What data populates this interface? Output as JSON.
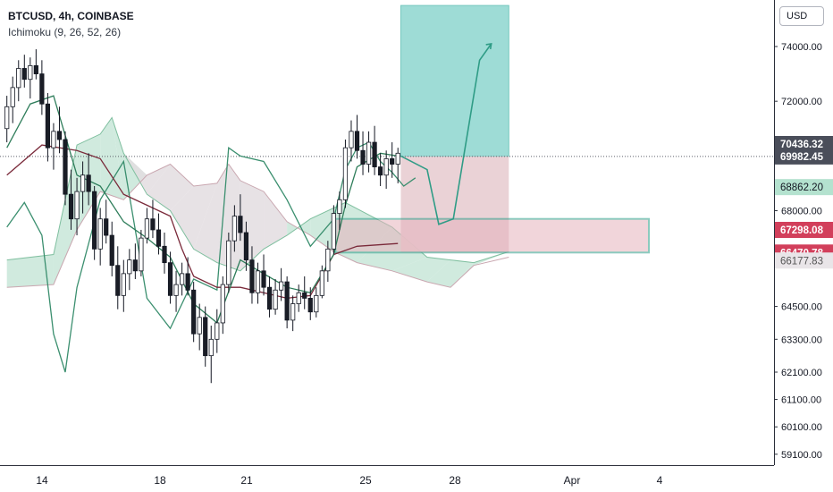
{
  "header": {
    "symbol_line": "BTCUSD, 4h, COINBASE",
    "indicator_line": "Ichimoku (9, 26, 52, 26)"
  },
  "currency_button": "USD",
  "colors": {
    "candle_up": "#26a69a",
    "candle_down": "#ef5350",
    "candle_border": "#131722",
    "conversion_line": "#2e7d5a",
    "base_line": "#7a2a3a",
    "lagging_span": "#3b8f6f",
    "cloud_bull": "#c8e6d8",
    "cloud_bear": "#e3dde0",
    "target_zone": "#8ed6cf",
    "stop_zone": "#e8cdd2",
    "entry_zone_fill": "#e6b3bd",
    "entry_zone_border": "#2e9f8a"
  },
  "chart_data": {
    "type": "candlestick",
    "x_axis": {
      "tick_labels": [
        "14",
        "18",
        "21",
        "25",
        "28",
        "Apr",
        "4"
      ]
    },
    "y_axis": {
      "range": [
        58700,
        75700
      ],
      "tick_labels": [
        "74000.00",
        "72000.00",
        "68000.00",
        "64500.00",
        "63300.00",
        "62100.00",
        "61100.00",
        "60100.00",
        "59100.00"
      ]
    },
    "price_labels": [
      {
        "text": "70436.32",
        "value": 70436.32,
        "style": "dark"
      },
      {
        "text": "69982.45",
        "value": 69982.45,
        "style": "dark"
      },
      {
        "text": "68862.20",
        "value": 68862.2,
        "style": "green"
      },
      {
        "text": "67298.08",
        "value": 67298.08,
        "style": "red"
      },
      {
        "text": "66470.78",
        "value": 66470.78,
        "style": "red"
      },
      {
        "text": "66177.83",
        "value": 66177.83,
        "style": "plain"
      }
    ],
    "dotted_price_line": 69982.45,
    "candles": [
      [
        71000,
        72200,
        70500,
        71800
      ],
      [
        71800,
        72900,
        71200,
        72500
      ],
      [
        72500,
        73500,
        72000,
        73200
      ],
      [
        73200,
        73700,
        72500,
        72800
      ],
      [
        72800,
        73600,
        72100,
        73300
      ],
      [
        73300,
        73900,
        72800,
        73000
      ],
      [
        73000,
        73500,
        71500,
        71900
      ],
      [
        71900,
        72300,
        69800,
        70300
      ],
      [
        70300,
        71200,
        69500,
        70900
      ],
      [
        70900,
        71800,
        70100,
        70600
      ],
      [
        70600,
        70900,
        68200,
        68600
      ],
      [
        68600,
        69500,
        67300,
        67700
      ],
      [
        67700,
        69200,
        67100,
        68700
      ],
      [
        68700,
        69800,
        67900,
        69300
      ],
      [
        69300,
        70100,
        68200,
        68700
      ],
      [
        68700,
        68900,
        66200,
        66600
      ],
      [
        66600,
        68100,
        66000,
        67700
      ],
      [
        67700,
        68400,
        66800,
        67100
      ],
      [
        67100,
        67600,
        65600,
        66000
      ],
      [
        66000,
        66700,
        64400,
        64900
      ],
      [
        64900,
        66200,
        64300,
        65700
      ],
      [
        65700,
        66600,
        65100,
        66200
      ],
      [
        66200,
        66800,
        65500,
        65800
      ],
      [
        65800,
        67300,
        65600,
        67000
      ],
      [
        67000,
        68100,
        66800,
        67700
      ],
      [
        67700,
        68400,
        67000,
        67300
      ],
      [
        67300,
        67900,
        66400,
        66700
      ],
      [
        66700,
        67200,
        65700,
        66100
      ],
      [
        66100,
        66500,
        64600,
        64900
      ],
      [
        64900,
        65800,
        64300,
        65300
      ],
      [
        65300,
        66100,
        64900,
        65700
      ],
      [
        65700,
        66300,
        64900,
        65100
      ],
      [
        65100,
        65400,
        63200,
        63500
      ],
      [
        63500,
        64600,
        62900,
        64100
      ],
      [
        64100,
        64500,
        62300,
        62700
      ],
      [
        62700,
        63800,
        61700,
        63300
      ],
      [
        63300,
        64400,
        62800,
        63900
      ],
      [
        63900,
        65600,
        63500,
        65300
      ],
      [
        65300,
        67200,
        65000,
        66900
      ],
      [
        66900,
        68200,
        66500,
        67800
      ],
      [
        67800,
        68600,
        66900,
        67200
      ],
      [
        67200,
        67600,
        65800,
        66200
      ],
      [
        66200,
        66700,
        64600,
        65000
      ],
      [
        65000,
        66100,
        64600,
        65800
      ],
      [
        65800,
        66400,
        64900,
        65200
      ],
      [
        65200,
        65600,
        64100,
        64400
      ],
      [
        64400,
        65500,
        64200,
        65100
      ],
      [
        65100,
        65900,
        64700,
        65400
      ],
      [
        65400,
        65600,
        63700,
        64000
      ],
      [
        64000,
        64900,
        63600,
        64600
      ],
      [
        64600,
        65300,
        64300,
        65000
      ],
      [
        65000,
        65600,
        64400,
        64800
      ],
      [
        64800,
        65200,
        64000,
        64300
      ],
      [
        64300,
        65200,
        64100,
        64900
      ],
      [
        64900,
        66000,
        64800,
        65800
      ],
      [
        65800,
        66900,
        65400,
        66600
      ],
      [
        66600,
        68200,
        66400,
        67900
      ],
      [
        67900,
        68700,
        67300,
        68400
      ],
      [
        68400,
        70600,
        68100,
        70300
      ],
      [
        70300,
        71300,
        69800,
        70900
      ],
      [
        70900,
        71500,
        69900,
        70200
      ],
      [
        70200,
        70900,
        69300,
        69700
      ],
      [
        69700,
        70900,
        69400,
        70500
      ],
      [
        70500,
        71100,
        69300,
        69600
      ],
      [
        69600,
        70100,
        68900,
        69300
      ],
      [
        69300,
        70200,
        68800,
        69900
      ],
      [
        69900,
        70500,
        69200,
        69700
      ],
      [
        69700,
        70300,
        69000,
        70100
      ]
    ],
    "conversion_line": [
      [
        0,
        70300
      ],
      [
        4,
        71900
      ],
      [
        8,
        72200
      ],
      [
        12,
        69300
      ],
      [
        16,
        68900
      ],
      [
        20,
        67600
      ],
      [
        24,
        67000
      ],
      [
        28,
        66300
      ],
      [
        32,
        64600
      ],
      [
        36,
        63900
      ],
      [
        40,
        66200
      ],
      [
        44,
        65700
      ],
      [
        48,
        65200
      ],
      [
        52,
        65000
      ],
      [
        56,
        66400
      ],
      [
        58,
        68200
      ],
      [
        60,
        69600
      ],
      [
        64,
        70100
      ],
      [
        67,
        70000
      ]
    ],
    "base_line": [
      [
        0,
        69300
      ],
      [
        6,
        70400
      ],
      [
        12,
        70200
      ],
      [
        16,
        69900
      ],
      [
        20,
        68600
      ],
      [
        24,
        68200
      ],
      [
        28,
        67800
      ],
      [
        30,
        66600
      ],
      [
        32,
        65600
      ],
      [
        36,
        65200
      ],
      [
        40,
        65200
      ],
      [
        44,
        65000
      ],
      [
        48,
        64800
      ],
      [
        52,
        64900
      ],
      [
        56,
        66400
      ],
      [
        60,
        66700
      ],
      [
        67,
        66800
      ]
    ],
    "lagging_span": [
      [
        0,
        67400
      ],
      [
        3,
        68300
      ],
      [
        6,
        67100
      ],
      [
        8,
        63500
      ],
      [
        10,
        62100
      ],
      [
        12,
        65200
      ],
      [
        16,
        68400
      ],
      [
        20,
        69800
      ],
      [
        24,
        64800
      ],
      [
        28,
        63700
      ],
      [
        32,
        65500
      ],
      [
        36,
        65100
      ],
      [
        38,
        70300
      ],
      [
        40,
        70000
      ],
      [
        44,
        69800
      ],
      [
        48,
        68400
      ],
      [
        52,
        66700
      ],
      [
        56,
        67700
      ],
      [
        58,
        69500
      ],
      [
        60,
        70300
      ],
      [
        62,
        70500
      ],
      [
        64,
        69800
      ],
      [
        66,
        69400
      ],
      [
        68,
        68900
      ],
      [
        70,
        69200
      ]
    ],
    "cloud_span_a": [
      [
        0,
        66200
      ],
      [
        8,
        66400
      ],
      [
        12,
        70400
      ],
      [
        16,
        70800
      ],
      [
        18,
        71400
      ],
      [
        20,
        70100
      ],
      [
        24,
        68600
      ],
      [
        28,
        68000
      ],
      [
        32,
        66600
      ],
      [
        36,
        66100
      ],
      [
        40,
        65800
      ],
      [
        44,
        66600
      ],
      [
        48,
        67100
      ],
      [
        52,
        67700
      ],
      [
        58,
        68300
      ],
      [
        66,
        67400
      ],
      [
        72,
        66300
      ],
      [
        76,
        66200
      ],
      [
        80,
        66100
      ],
      [
        86,
        66500
      ]
    ],
    "cloud_span_b": [
      [
        0,
        65200
      ],
      [
        8,
        65300
      ],
      [
        12,
        67300
      ],
      [
        16,
        68700
      ],
      [
        20,
        68400
      ],
      [
        24,
        69300
      ],
      [
        28,
        69700
      ],
      [
        32,
        68900
      ],
      [
        36,
        69000
      ],
      [
        38,
        69700
      ],
      [
        40,
        69100
      ],
      [
        44,
        68700
      ],
      [
        48,
        67600
      ],
      [
        52,
        67100
      ],
      [
        56,
        66500
      ],
      [
        60,
        66100
      ],
      [
        66,
        65800
      ],
      [
        72,
        65400
      ],
      [
        76,
        65200
      ],
      [
        80,
        66000
      ],
      [
        86,
        66300
      ]
    ],
    "position_tool": {
      "entry": 69982.45,
      "target": 75500,
      "stop": 66470.78,
      "start": 67.5,
      "end": 86
    },
    "entry_zone": {
      "top": 67700,
      "bottom": 66470.78,
      "start": 56.3,
      "end": 110
    },
    "projection_path": [
      [
        67.5,
        70000
      ],
      [
        72,
        69500
      ],
      [
        74,
        67500
      ],
      [
        76.5,
        67700
      ],
      [
        81,
        73500
      ],
      [
        83,
        74100
      ]
    ]
  }
}
